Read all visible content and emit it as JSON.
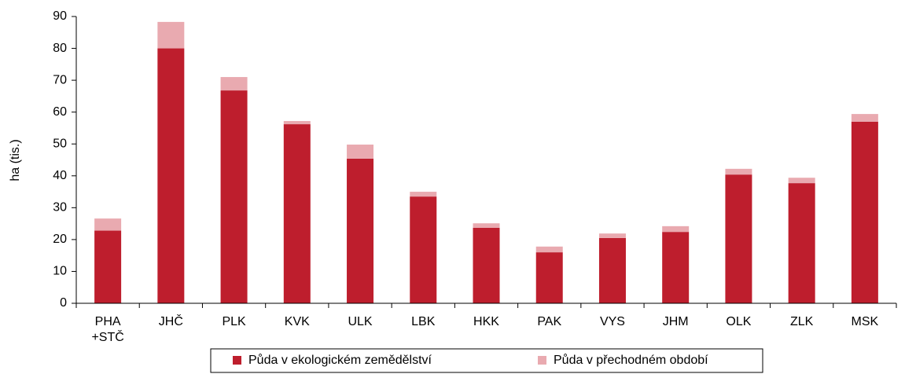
{
  "chart_data": {
    "type": "stacked_bar",
    "y_label": "ha (tis.)",
    "categories": [
      "PHA\n+STČ",
      "JHČ",
      "PLK",
      "KVK",
      "ULK",
      "LBK",
      "HKK",
      "PAK",
      "VYS",
      "JHM",
      "OLK",
      "ZLK",
      "MSK"
    ],
    "series": [
      {
        "name": "Půda v ekologickém zemědělství",
        "color": "#be1e2d",
        "values": [
          22.8,
          80.0,
          66.8,
          56.2,
          45.4,
          33.5,
          23.7,
          16.0,
          20.5,
          22.4,
          40.4,
          37.7,
          57.0
        ]
      },
      {
        "name": "Půda v přechodném období",
        "color": "#e9aab0",
        "values": [
          3.8,
          8.3,
          4.2,
          1.0,
          4.4,
          1.5,
          1.4,
          1.8,
          1.4,
          1.8,
          1.8,
          1.7,
          2.4
        ]
      }
    ],
    "ylim": [
      0,
      90
    ],
    "yticks": [
      0,
      10,
      20,
      30,
      40,
      50,
      60,
      70,
      80,
      90
    ],
    "grid": false,
    "legend": "bottom"
  }
}
